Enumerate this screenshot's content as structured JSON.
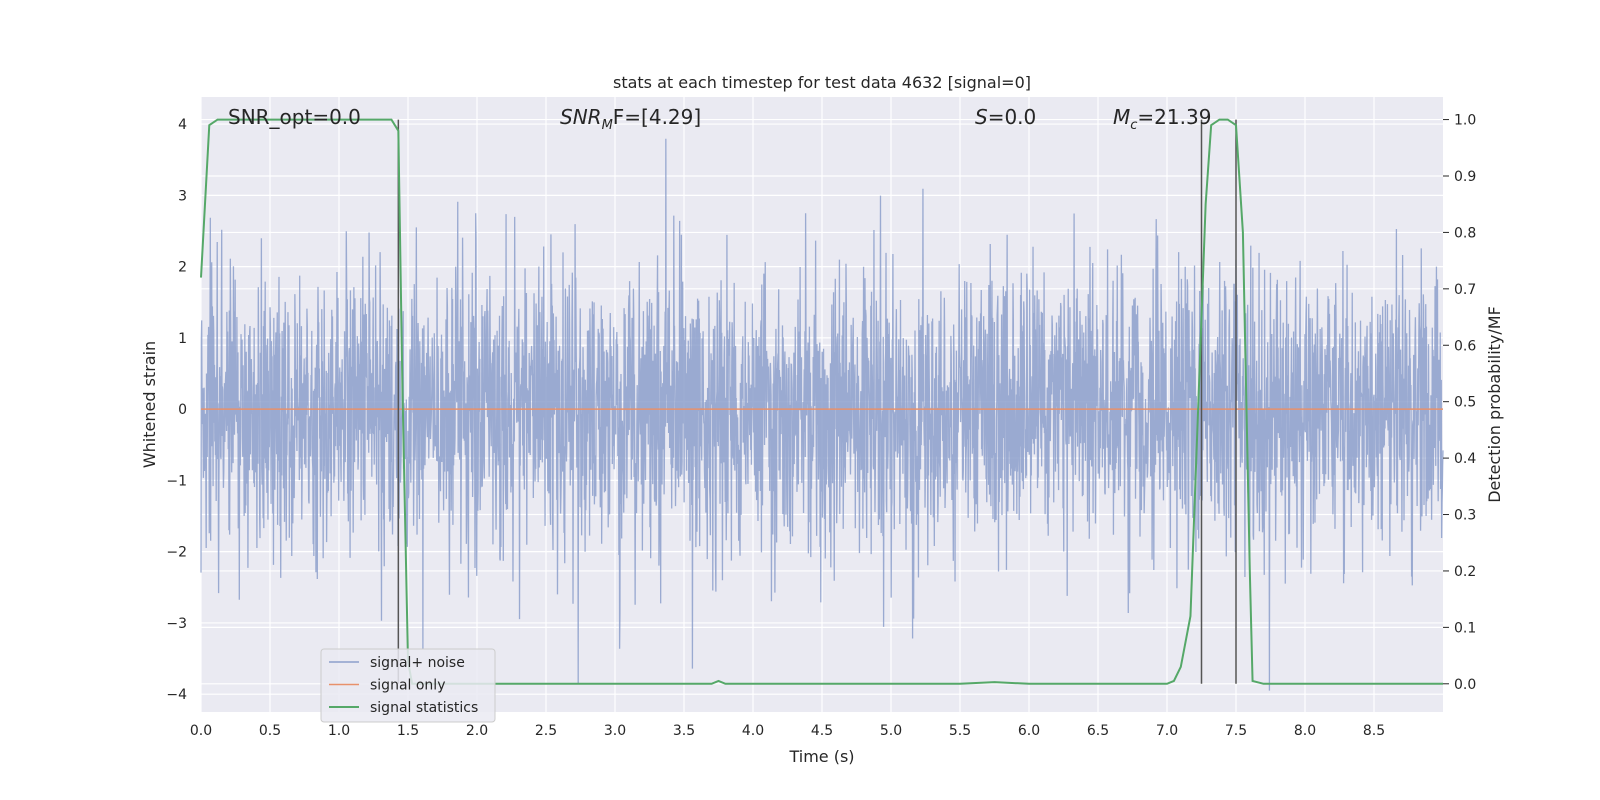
{
  "chart_data": {
    "type": "line",
    "title": "stats at each timestep for test data 4632 [signal=0]",
    "xlabel": "Time (s)",
    "ylabel_left": "Whitened strain",
    "ylabel_right": "Detection probability/MF",
    "xlim": [
      0.0,
      9.0
    ],
    "ylim_left": [
      -4.25,
      4.38
    ],
    "ylim_right": [
      -0.05,
      1.04
    ],
    "xticks": [
      "0.0",
      "0.5",
      "1.0",
      "1.5",
      "2.0",
      "2.5",
      "3.0",
      "3.5",
      "4.0",
      "4.5",
      "5.0",
      "5.5",
      "6.0",
      "6.5",
      "7.0",
      "7.5",
      "8.0",
      "8.5"
    ],
    "yticks_left": [
      "4",
      "3",
      "2",
      "1",
      "0",
      "−1",
      "−2",
      "−3",
      "−4"
    ],
    "yticks_right": [
      "1.0",
      "0.9",
      "0.8",
      "0.7",
      "0.6",
      "0.5",
      "0.4",
      "0.3",
      "0.2",
      "0.1",
      "0.0"
    ],
    "grid": true,
    "legend_position": "lower-left",
    "colors": {
      "noise": "#8c9fcb",
      "signal": "#e8916b",
      "stats": "#55a868",
      "vline": "#555555",
      "background": "#eaeaf2",
      "grid": "#ffffff"
    },
    "annotations": {
      "snr_opt": "SNR_opt=0.0",
      "snr_mf_base": "SNR",
      "snr_mf_sub": "M",
      "snr_mf_rest": "F=[4.29]",
      "s_var": "S",
      "s_rest": "=0.0",
      "mc_base": "M",
      "mc_sub": "c",
      "mc_rest": "=21.39"
    },
    "series": [
      {
        "name": "signal+ noise",
        "axis": "left",
        "style": "dense-noise",
        "std": 1.0,
        "x_range": [
          0.0,
          9.0
        ]
      },
      {
        "name": "signal only",
        "axis": "left",
        "x": [
          0.0,
          9.0
        ],
        "y": [
          0.0,
          0.0
        ]
      },
      {
        "name": "signal statistics",
        "axis": "right",
        "x": [
          0.0,
          0.06,
          0.12,
          0.2,
          0.6,
          1.0,
          1.38,
          1.43,
          1.46,
          1.5,
          1.53,
          1.6,
          2.0,
          3.0,
          3.7,
          3.75,
          3.8,
          4.5,
          5.0,
          5.5,
          5.75,
          6.0,
          6.5,
          6.9,
          7.0,
          7.05,
          7.1,
          7.17,
          7.22,
          7.28,
          7.32,
          7.38,
          7.44,
          7.5,
          7.55,
          7.6,
          7.62,
          7.7,
          8.0,
          8.5,
          9.0
        ],
        "y": [
          0.72,
          0.99,
          1.0,
          1.0,
          1.0,
          1.0,
          1.0,
          0.98,
          0.52,
          0.04,
          0.0,
          0.0,
          0.0,
          0.0,
          0.0,
          0.005,
          0.0,
          0.0,
          0.0,
          0.0,
          0.003,
          0.0,
          0.0,
          0.0,
          0.0,
          0.005,
          0.03,
          0.12,
          0.45,
          0.85,
          0.99,
          1.0,
          1.0,
          0.99,
          0.8,
          0.2,
          0.005,
          0.0,
          0.0,
          0.0,
          0.0
        ]
      }
    ],
    "vlines": [
      1.43,
      7.25,
      7.5
    ]
  }
}
